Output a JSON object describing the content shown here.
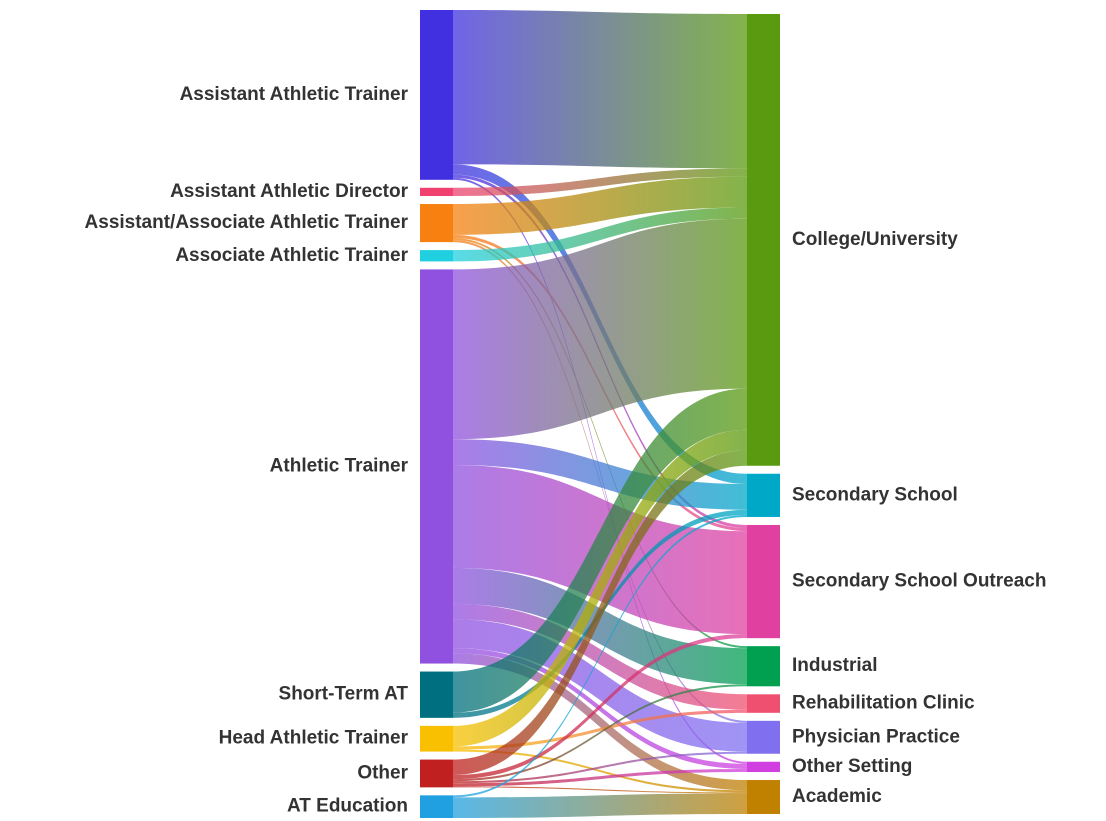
{
  "chart_data": {
    "type": "sankey",
    "sources": [
      {
        "name": "Assistant Athletic Trainer",
        "color": "#4030e0"
      },
      {
        "name": "Assistant Athletic Director",
        "color": "#f04070"
      },
      {
        "name": "Assistant/Associate Athletic Trainer",
        "color": "#f88010"
      },
      {
        "name": "Associate Athletic Trainer",
        "color": "#20d0e0"
      },
      {
        "name": "Athletic Trainer",
        "color": "#9050e0"
      },
      {
        "name": "Short-Term AT",
        "color": "#007080"
      },
      {
        "name": "Head Athletic Trainer",
        "color": "#f8c000"
      },
      {
        "name": "Other",
        "color": "#c02020"
      },
      {
        "name": "AT Education",
        "color": "#20a0e0"
      }
    ],
    "targets": [
      {
        "name": "College/University",
        "color": "#5a9a10"
      },
      {
        "name": "Secondary School",
        "color": "#00a8c8"
      },
      {
        "name": "Secondary School Outreach",
        "color": "#e040a0"
      },
      {
        "name": "Industrial",
        "color": "#00a050"
      },
      {
        "name": "Rehabilitation Clinic",
        "color": "#f05070"
      },
      {
        "name": "Physician Practice",
        "color": "#8070f0"
      },
      {
        "name": "Other Setting",
        "color": "#d040e0"
      },
      {
        "name": "Academic",
        "color": "#c08000"
      }
    ],
    "links": [
      {
        "source": 0,
        "target": 0,
        "value": 150
      },
      {
        "source": 0,
        "target": 1,
        "value": 10
      },
      {
        "source": 0,
        "target": 2,
        "value": 3
      },
      {
        "source": 0,
        "target": 6,
        "value": 2
      },
      {
        "source": 1,
        "target": 0,
        "value": 8
      },
      {
        "source": 2,
        "target": 0,
        "value": 30
      },
      {
        "source": 2,
        "target": 2,
        "value": 3
      },
      {
        "source": 2,
        "target": 3,
        "value": 2
      },
      {
        "source": 2,
        "target": 5,
        "value": 2
      },
      {
        "source": 3,
        "target": 0,
        "value": 11
      },
      {
        "source": 4,
        "target": 0,
        "value": 165
      },
      {
        "source": 4,
        "target": 1,
        "value": 25
      },
      {
        "source": 4,
        "target": 2,
        "value": 100
      },
      {
        "source": 4,
        "target": 3,
        "value": 35
      },
      {
        "source": 4,
        "target": 4,
        "value": 15
      },
      {
        "source": 4,
        "target": 5,
        "value": 28
      },
      {
        "source": 4,
        "target": 6,
        "value": 5
      },
      {
        "source": 4,
        "target": 7,
        "value": 10
      },
      {
        "source": 5,
        "target": 0,
        "value": 40
      },
      {
        "source": 5,
        "target": 1,
        "value": 5
      },
      {
        "source": 6,
        "target": 0,
        "value": 20
      },
      {
        "source": 6,
        "target": 4,
        "value": 3
      },
      {
        "source": 6,
        "target": 7,
        "value": 2
      },
      {
        "source": 7,
        "target": 0,
        "value": 15
      },
      {
        "source": 7,
        "target": 2,
        "value": 4
      },
      {
        "source": 7,
        "target": 6,
        "value": 3
      },
      {
        "source": 7,
        "target": 5,
        "value": 2
      },
      {
        "source": 7,
        "target": 3,
        "value": 2
      },
      {
        "source": 7,
        "target": 7,
        "value": 1
      },
      {
        "source": 8,
        "target": 7,
        "value": 20
      },
      {
        "source": 8,
        "target": 1,
        "value": 2
      }
    ]
  }
}
